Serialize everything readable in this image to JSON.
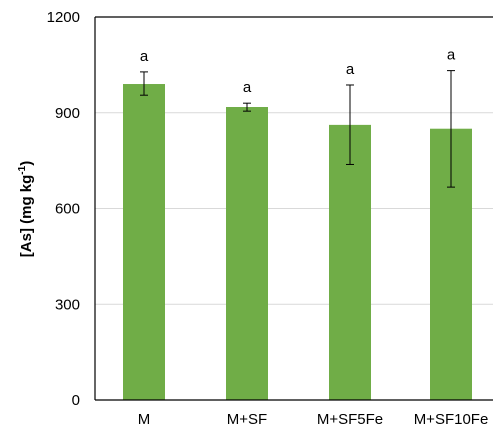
{
  "chart_data": {
    "type": "bar",
    "categories": [
      "M",
      "M+SF",
      "M+SF5Fe",
      "M+SF10Fe"
    ],
    "values": [
      990,
      918,
      862,
      850
    ],
    "errors": [
      [
        955,
        1028
      ],
      [
        905,
        930
      ],
      [
        738,
        987
      ],
      [
        667,
        1032
      ]
    ],
    "annotations": [
      "a",
      "a",
      "a",
      "a"
    ],
    "ylabel": {
      "main": "[As] (mg kg",
      "sup": "-1",
      "end": ")"
    },
    "ylim": [
      0,
      1200
    ],
    "yticks": [
      "0",
      "300",
      "600",
      "900",
      "1200"
    ],
    "bar_color": "#70ad47",
    "grid": true
  }
}
